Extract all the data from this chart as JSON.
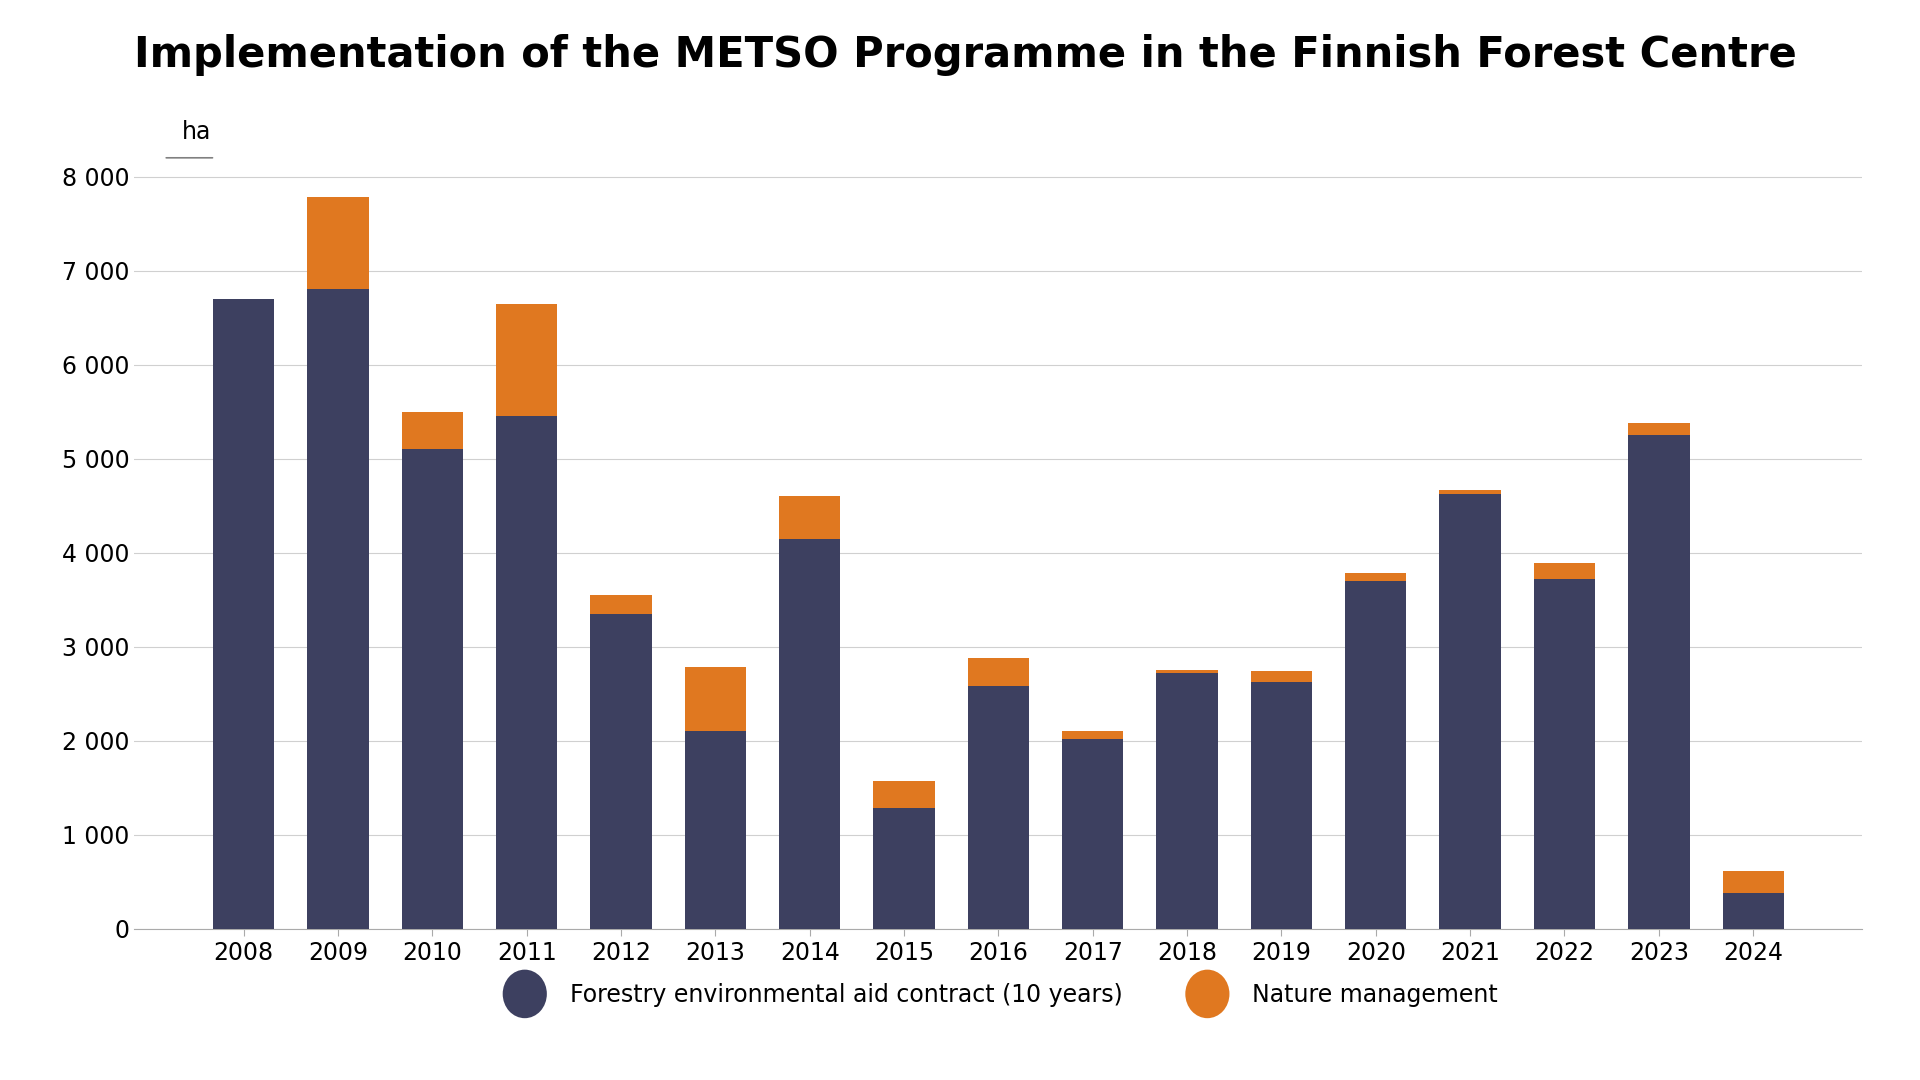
{
  "title": "Implementation of the METSO Programme in the Finnish Forest Centre",
  "years": [
    2008,
    2009,
    2010,
    2011,
    2012,
    2013,
    2014,
    2015,
    2016,
    2017,
    2018,
    2019,
    2020,
    2021,
    2022,
    2023,
    2024
  ],
  "environmental_aid": [
    6700,
    6800,
    5100,
    5450,
    3350,
    2100,
    4150,
    1280,
    2580,
    2020,
    2720,
    2620,
    3700,
    4620,
    3720,
    5250,
    380
  ],
  "nature_management": [
    0,
    980,
    400,
    1200,
    200,
    680,
    450,
    290,
    300,
    80,
    30,
    120,
    80,
    50,
    170,
    130,
    230
  ],
  "bar_color_aid": "#3d4060",
  "bar_color_nature": "#e07820",
  "background_color": "#ffffff",
  "ylabel": "ha",
  "ylim": [
    0,
    8500
  ],
  "yticks": [
    0,
    1000,
    2000,
    3000,
    4000,
    5000,
    6000,
    7000,
    8000
  ],
  "ytick_labels": [
    "0",
    "1 000",
    "2 000",
    "3 000",
    "4 000",
    "5 000",
    "6 000",
    "7 000",
    "8 000"
  ],
  "legend_aid_label": "Forestry environmental aid contract (10 years)",
  "legend_nature_label": "Nature management",
  "title_fontsize": 30,
  "axis_fontsize": 17,
  "legend_fontsize": 17
}
